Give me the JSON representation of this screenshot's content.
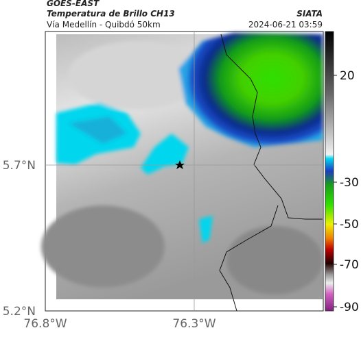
{
  "header": {
    "source": "GOES-EAST",
    "product": "Temperatura de Brillo CH13",
    "route": "Vía Medellín - Quibdó 50km",
    "agency": "SIATA",
    "timestamp": "2024-06-21 03:59"
  },
  "map": {
    "lat_labels": [
      "5.7°N",
      "5.2°N"
    ],
    "lon_labels": [
      "76.8°W",
      "76.3°W"
    ]
  },
  "colorbar": {
    "tick_labels": [
      "20",
      "-30",
      "-50",
      "-70",
      "-90"
    ]
  }
}
